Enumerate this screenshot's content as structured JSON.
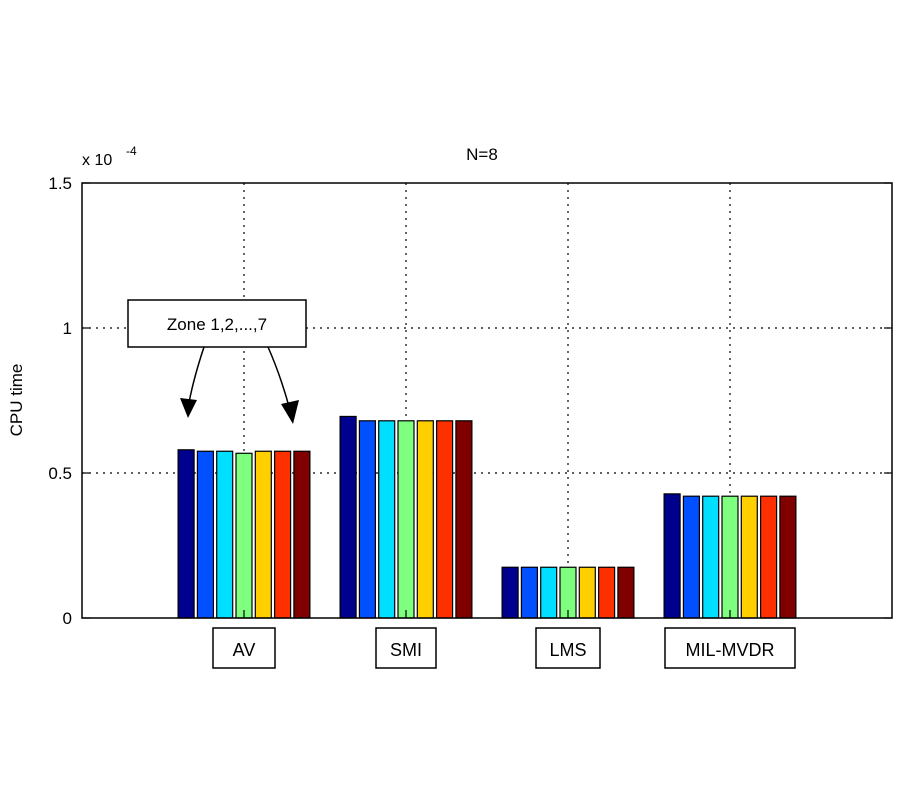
{
  "chart_data": {
    "type": "bar",
    "title": "N=8",
    "ylabel": "CPU time",
    "xlabel": "",
    "y_multiplier_label": "x 10",
    "y_multiplier_exponent": "-4",
    "ylim": [
      0,
      1.5
    ],
    "yticks": [
      0,
      0.5,
      1,
      1.5
    ],
    "ytick_labels": [
      "0",
      "0.5",
      "1",
      "1.5"
    ],
    "grid": true,
    "categories": [
      "AV",
      "SMI",
      "LMS",
      "MIL-MVDR"
    ],
    "series": [
      {
        "values": [
          0.58,
          0.695,
          0.175,
          0.428
        ]
      },
      {
        "values": [
          0.575,
          0.68,
          0.175,
          0.42
        ]
      },
      {
        "values": [
          0.575,
          0.68,
          0.175,
          0.42
        ]
      },
      {
        "values": [
          0.568,
          0.68,
          0.175,
          0.42
        ]
      },
      {
        "values": [
          0.575,
          0.68,
          0.175,
          0.42
        ]
      },
      {
        "values": [
          0.575,
          0.68,
          0.175,
          0.42
        ]
      },
      {
        "values": [
          0.575,
          0.68,
          0.175,
          0.42
        ]
      }
    ],
    "series_colors": [
      "#00008f",
      "#0050ff",
      "#00dfff",
      "#7fff7f",
      "#ffcf00",
      "#ff3000",
      "#800000"
    ],
    "annotation": {
      "text": "Zone 1,2,...,7",
      "target_category": "AV"
    }
  }
}
